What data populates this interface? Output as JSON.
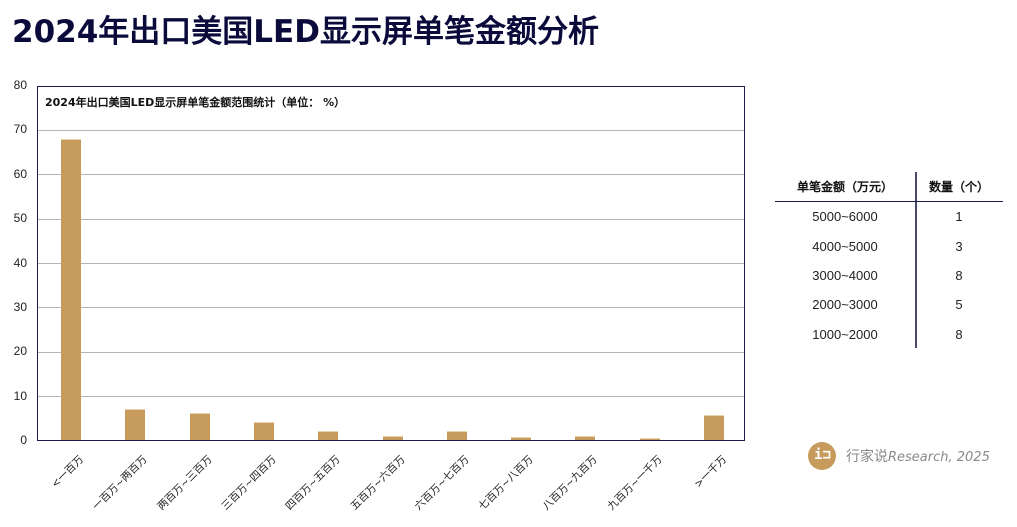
{
  "page": {
    "title": "2024年出口美国LED显示屏单笔金额分析"
  },
  "chart_data": {
    "type": "bar",
    "title": "2024年出口美国LED显示屏单笔金额范围统计（单位： %）",
    "xlabel": "",
    "ylabel": "",
    "ylim": [
      0,
      80
    ],
    "yticks": [
      "0",
      "10",
      "20",
      "30",
      "40",
      "50",
      "60",
      "70",
      "80"
    ],
    "grid": true,
    "legend": null,
    "color": "#c79b5b",
    "categories": [
      "<一百万",
      "一百万~两百万",
      "两百万~三百万",
      "三百万~四百万",
      "四百万~五百万",
      "五百万~六百万",
      "六百万~七百万",
      "七百万~八百万",
      "八百万~九百万",
      "九百万~一千万",
      ">一千万"
    ],
    "values": [
      67.8,
      7.0,
      6.2,
      4.1,
      2.1,
      0.8,
      2.1,
      0.7,
      0.8,
      0.4,
      5.6
    ]
  },
  "table": {
    "headers": [
      "单笔金额（万元）",
      "数量（个）"
    ],
    "rows": [
      [
        "5000~6000",
        "1"
      ],
      [
        "4000~5000",
        "3"
      ],
      [
        "3000~4000",
        "8"
      ],
      [
        "2000~3000",
        "5"
      ],
      [
        "1000~2000",
        "8"
      ]
    ]
  },
  "brand": {
    "logo_glyph": "i⊐",
    "name": "行家说",
    "suffix": "Research, 2025"
  }
}
